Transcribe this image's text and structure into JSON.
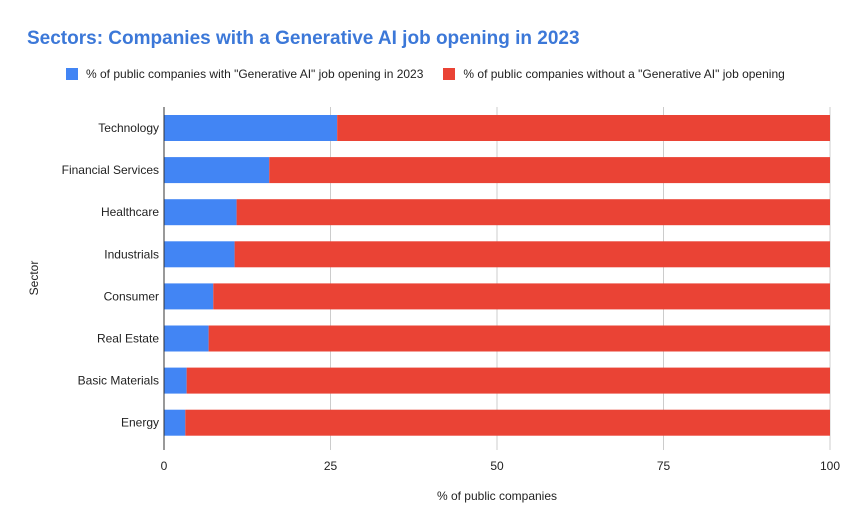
{
  "chart_data": {
    "type": "bar",
    "stacked": true,
    "orientation": "horizontal",
    "title": "Sectors: Companies with a Generative AI job opening in 2023",
    "xlabel": "% of public companies",
    "ylabel": "Sector",
    "xlim": [
      0,
      100
    ],
    "xticks": [
      "0",
      "25",
      "50",
      "75",
      "100"
    ],
    "legend_position": "top",
    "categories": [
      "Technology",
      "Financial Services",
      "Healthcare",
      "Industrials",
      "Consumer",
      "Real Estate",
      "Basic Materials",
      "Energy"
    ],
    "series": [
      {
        "name": "% of public companies with \"Generative AI\" job opening in 2023",
        "color": "#4285f4",
        "values": [
          26.0,
          15.8,
          10.9,
          10.6,
          7.4,
          6.7,
          3.4,
          3.2
        ]
      },
      {
        "name": "% of public companies without a \"Generative AI\" job opening",
        "color": "#ea4335",
        "values": [
          74.0,
          84.2,
          89.1,
          89.4,
          92.6,
          93.3,
          96.6,
          96.8
        ]
      }
    ]
  }
}
